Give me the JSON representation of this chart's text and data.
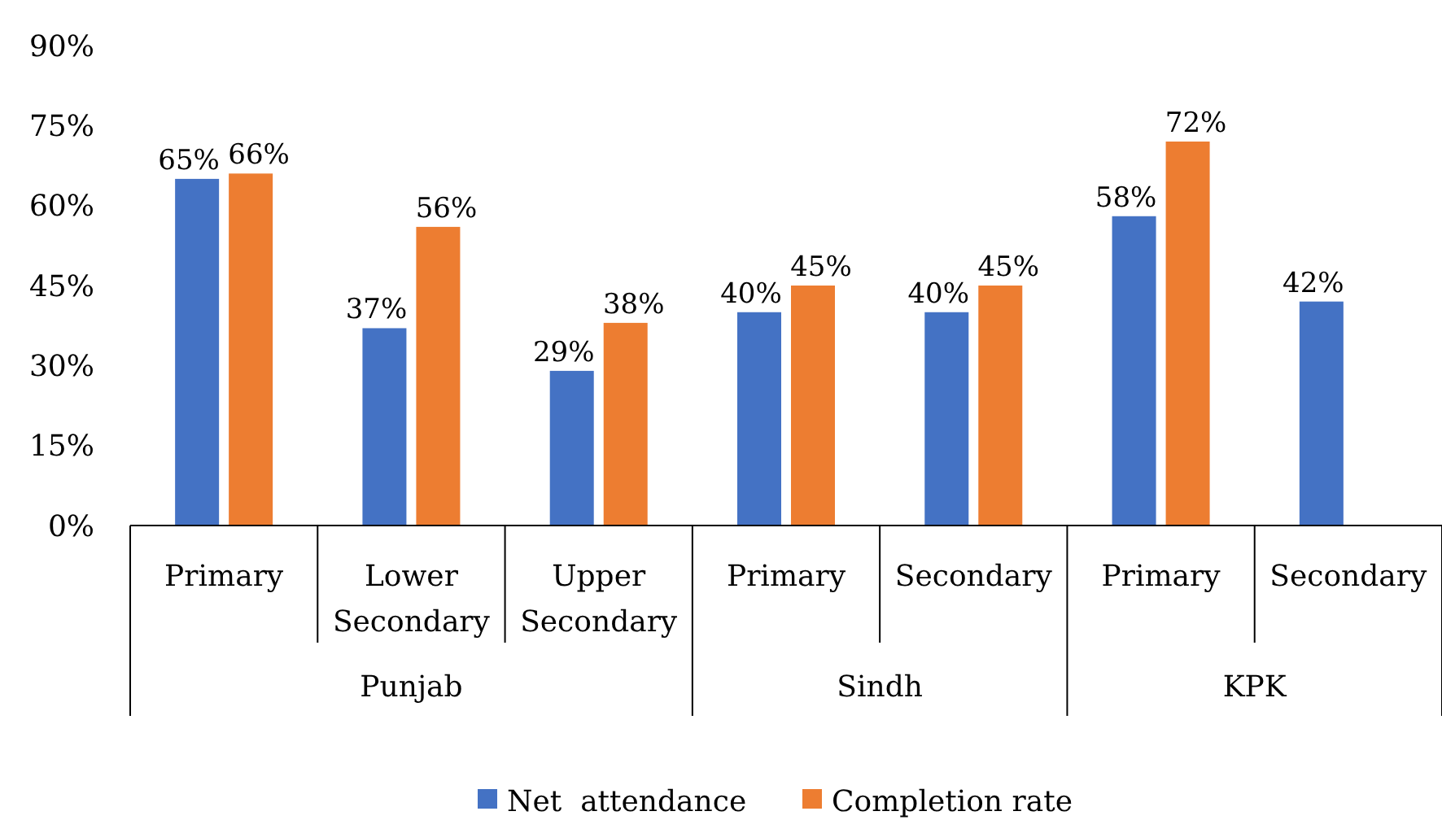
{
  "chart_data": {
    "type": "bar",
    "categories": [
      "Primary",
      "Lower Secondary",
      "Upper Secondary",
      "Primary",
      "Secondary",
      "Primary",
      "Secondary"
    ],
    "series": [
      {
        "name": "Net  attendance",
        "color": "#4472c4",
        "values": [
          65,
          37,
          29,
          40,
          40,
          58,
          42
        ],
        "value_labels": [
          "65%",
          "37%",
          "29%",
          "40%",
          "40%",
          "58%",
          "42%"
        ]
      },
      {
        "name": "Completion rate",
        "color": "#ed7d31",
        "values": [
          66,
          56,
          38,
          45,
          45,
          72,
          null
        ],
        "value_labels": [
          "66%",
          "56%",
          "38%",
          "45%",
          "45%",
          "72%",
          null
        ]
      }
    ],
    "ylim": [
      0,
      90
    ],
    "yticks": [
      {
        "value": 0,
        "label": "0%"
      },
      {
        "value": 15,
        "label": "15%"
      },
      {
        "value": 30,
        "label": "30%"
      },
      {
        "value": 45,
        "label": "45%"
      },
      {
        "value": 60,
        "label": "60%"
      },
      {
        "value": 75,
        "label": "75%"
      },
      {
        "value": 90,
        "label": "90%"
      }
    ],
    "annotations": [
      "Punjab",
      "Sindh",
      "KPK"
    ],
    "grid": false,
    "legend": "bottom"
  }
}
